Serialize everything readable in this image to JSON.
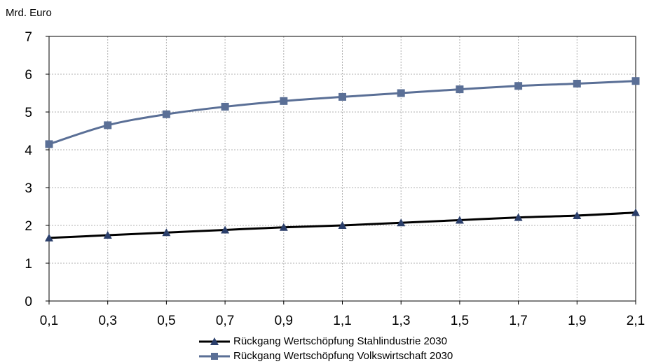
{
  "unit_label": "Mrd. Euro",
  "chart_data": {
    "type": "line",
    "x": [
      0.1,
      0.3,
      0.5,
      0.7,
      0.9,
      1.1,
      1.3,
      1.5,
      1.7,
      1.9,
      2.1
    ],
    "x_tick_labels": [
      "0,1",
      "0,3",
      "0,5",
      "0,7",
      "0,9",
      "1,1",
      "1,3",
      "1,5",
      "1,7",
      "1,9",
      "2,1"
    ],
    "y_tick_labels": [
      "0",
      "1",
      "2",
      "3",
      "4",
      "5",
      "6",
      "7"
    ],
    "ylim": [
      0,
      7
    ],
    "xlim": [
      0.1,
      2.1
    ],
    "grid": true,
    "legend_position": "bottom",
    "series": [
      {
        "name": "Rückgang Wertschöpfung Stahlindustrie  2030",
        "marker": "triangle",
        "color": "#000000",
        "marker_color": "#2b3f6b",
        "values": [
          1.67,
          1.74,
          1.81,
          1.88,
          1.95,
          2.0,
          2.07,
          2.14,
          2.21,
          2.26,
          2.34
        ]
      },
      {
        "name": "Rückgang Wertschöpfung Volkswirtschaft 2030",
        "marker": "square",
        "color": "#5a6f96",
        "marker_color": "#5a6f96",
        "values": [
          4.15,
          4.65,
          4.94,
          5.14,
          5.29,
          5.4,
          5.5,
          5.6,
          5.69,
          5.75,
          5.82
        ]
      }
    ]
  }
}
